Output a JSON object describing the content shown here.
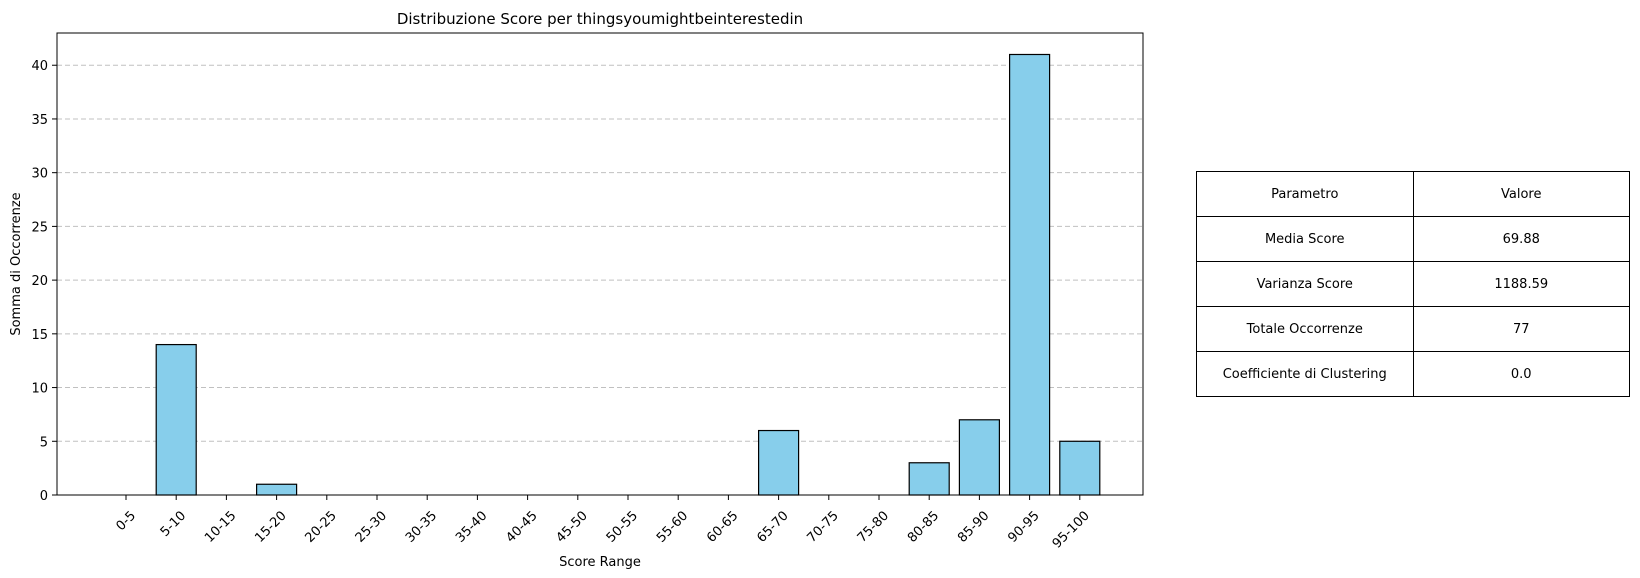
{
  "chart_data": {
    "type": "bar",
    "title": "Distribuzione Score per thingsyoumightbeinterestedin",
    "xlabel": "Score Range",
    "ylabel": "Somma di Occorrenze",
    "categories": [
      "0-5",
      "5-10",
      "10-15",
      "15-20",
      "20-25",
      "25-30",
      "30-35",
      "35-40",
      "40-45",
      "45-50",
      "50-55",
      "55-60",
      "60-65",
      "65-70",
      "70-75",
      "75-80",
      "80-85",
      "85-90",
      "90-95",
      "95-100"
    ],
    "values": [
      0,
      14,
      0,
      1,
      0,
      0,
      0,
      0,
      0,
      0,
      0,
      0,
      0,
      6,
      0,
      0,
      3,
      7,
      41,
      5
    ],
    "ylim": [
      0,
      43
    ],
    "yticks": [
      0,
      5,
      10,
      15,
      20,
      25,
      30,
      35,
      40
    ],
    "grid": "y-dashed",
    "bar_color": "#87ceeb",
    "edge_color": "#000000"
  },
  "table": {
    "header": [
      "Parametro",
      "Valore"
    ],
    "rows": [
      [
        "Media Score",
        "69.88"
      ],
      [
        "Varianza Score",
        "1188.59"
      ],
      [
        "Totale Occorrenze",
        "77"
      ],
      [
        "Coefficiente di Clustering",
        "0.0"
      ]
    ]
  }
}
